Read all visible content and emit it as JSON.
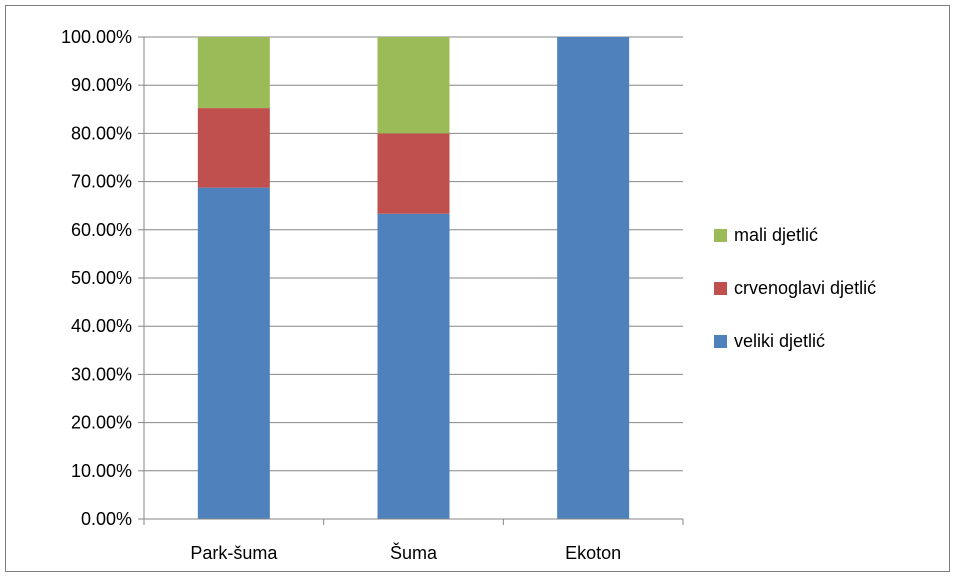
{
  "chart_data": {
    "type": "bar",
    "stacked": true,
    "percent": true,
    "categories": [
      "Park-šuma",
      "Šuma",
      "Ekoton"
    ],
    "series": [
      {
        "name": "veliki djetlić",
        "color": "#4f81bd",
        "values": [
          68.75,
          63.33,
          100
        ]
      },
      {
        "name": "crvenoglavi djetlić",
        "color": "#c0504d",
        "values": [
          16.5,
          16.67,
          0
        ]
      },
      {
        "name": "mali djetlić",
        "color": "#9bbb59",
        "values": [
          14.75,
          20.0,
          0
        ]
      }
    ],
    "ylim": [
      0,
      100
    ],
    "yticks": [
      "0.00%",
      "10.00%",
      "20.00%",
      "30.00%",
      "40.00%",
      "50.00%",
      "60.00%",
      "70.00%",
      "80.00%",
      "90.00%",
      "100.00%"
    ],
    "grid": true,
    "legend_position": "right",
    "legend_order": [
      "mali djetlić",
      "crvenoglavi djetlić",
      "veliki djetlić"
    ],
    "gridline_color": "#868686",
    "title": "",
    "xlabel": "",
    "ylabel": ""
  }
}
